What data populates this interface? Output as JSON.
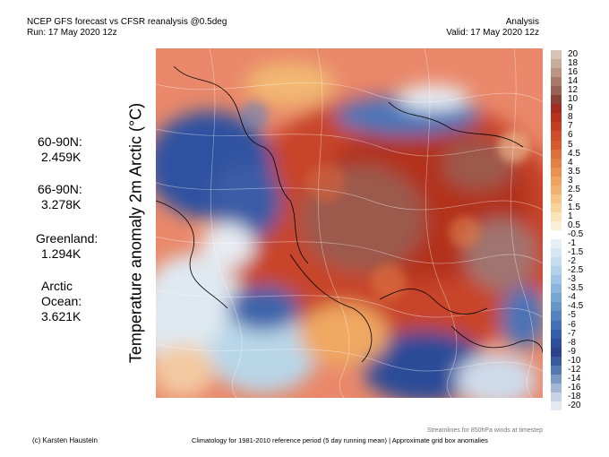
{
  "header": {
    "title": "NCEP GFS forecast vs CFSR reanalysis @0.5deg",
    "run": "Run: 17 May 2020 12z",
    "mode": "Analysis",
    "valid": "Valid: 17 May 2020 12z"
  },
  "stats": {
    "n6090_label": "60-90N:",
    "n6090_value": "2.459K",
    "n6690_label": "66-90N:",
    "n6690_value": "3.278K",
    "greenland_label": "Greenland:",
    "greenland_value": "1.294K",
    "arctic_label_1": "Arctic",
    "arctic_label_2": "Ocean:",
    "arctic_value": "3.621K"
  },
  "axis_label": "Temperature anomaly 2m Arctic (°C)",
  "colorbar": {
    "ticks": [
      "20",
      "18",
      "16",
      "14",
      "12",
      "10",
      "9",
      "8",
      "7",
      "6",
      "5",
      "4.5",
      "4",
      "3.5",
      "3",
      "2.5",
      "2",
      "1.5",
      "1",
      "0.5",
      "-0.5",
      "-1",
      "-1.5",
      "-2",
      "-2.5",
      "-3",
      "-3.5",
      "-4",
      "-4.5",
      "-5",
      "-6",
      "-7",
      "-8",
      "-9",
      "-10",
      "-12",
      "-14",
      "-16",
      "-18",
      "-20"
    ],
    "colors": [
      "#d8c4b6",
      "#c9ab9b",
      "#bb9582",
      "#a97a6a",
      "#9a6255",
      "#8a4238",
      "#a52a22",
      "#b8331f",
      "#c43e22",
      "#cf4d28",
      "#d65c30",
      "#de6e3a",
      "#e57f45",
      "#ea9150",
      "#f0a35e",
      "#f3b370",
      "#f6c485",
      "#f8d49c",
      "#fae3b6",
      "#fbf0d6",
      "#ffffff",
      "#e8f0f6",
      "#d6e6f2",
      "#c4dcee",
      "#b2d1ea",
      "#9fc4e4",
      "#8bb5dc",
      "#78a6d3",
      "#6596c9",
      "#5384c0",
      "#4370b6",
      "#375fa9",
      "#2d4f9b",
      "#2a438b",
      "#3a5a9e",
      "#5678b0",
      "#7b97c3",
      "#a2b7d6",
      "#c8d4e6",
      "#e2e9f2"
    ]
  },
  "streamline_note": "Streamlines for 850hPa winds at timestep",
  "credit": "(c) Karsten Haustein",
  "climatology_note": "Climatology for 1981-2010 reference period (5 day running mean) | Approximate grid box anomalies"
}
